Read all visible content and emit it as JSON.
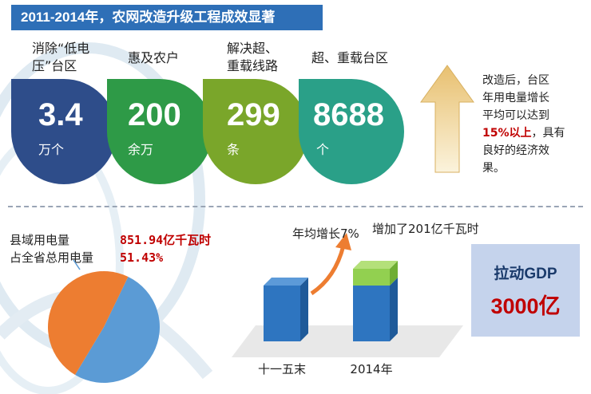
{
  "title": "2011-2014年，农网改造升级工程成效显著",
  "stats": [
    {
      "label_lines": [
        "消除“低电",
        "压”台区"
      ],
      "value": "3.4",
      "unit": "万个",
      "color": "#2e4d8a"
    },
    {
      "label_lines": [
        "惠及农户"
      ],
      "value": "200",
      "unit": "余万",
      "color": "#2e9a47"
    },
    {
      "label_lines": [
        "解决超、",
        "重载线路"
      ],
      "value": "299",
      "unit": "条",
      "color": "#7aa62a"
    },
    {
      "label_lines": [
        "超、重载台区"
      ],
      "value": "8688",
      "unit": "个",
      "color": "#2aa088"
    }
  ],
  "side_note": {
    "lines": [
      "改造后，台区",
      "年用电量增长",
      "平均可以达到"
    ],
    "highlight": "15%以上",
    "tail": "，具有",
    "lines2": [
      "良好的经济效",
      "果。"
    ]
  },
  "pie": {
    "label1": "县域用电量",
    "value1": "851.94亿千瓦时",
    "label2": "占全省总用电量",
    "value2": "51.43%"
  },
  "gdp": {
    "label": "拉动GDP",
    "value": "3000亿"
  },
  "chart_data": [
    {
      "type": "pie",
      "slices": [
        {
          "share": 51.43,
          "color": "#5b9bd5"
        },
        {
          "share": 48.57,
          "color": "#ed7d31"
        }
      ]
    },
    {
      "type": "bar",
      "categories": [
        "十一五末",
        "2014年"
      ],
      "stacked": true,
      "series": [
        {
          "values": [
            1,
            1
          ],
          "color": "#2e75c0"
        },
        {
          "values": [
            0,
            0.3
          ],
          "color": "#92d050"
        }
      ],
      "annotations": [
        "年均增长7%",
        "增加了201亿千瓦时"
      ],
      "grid": false,
      "axes_visible": false
    }
  ]
}
